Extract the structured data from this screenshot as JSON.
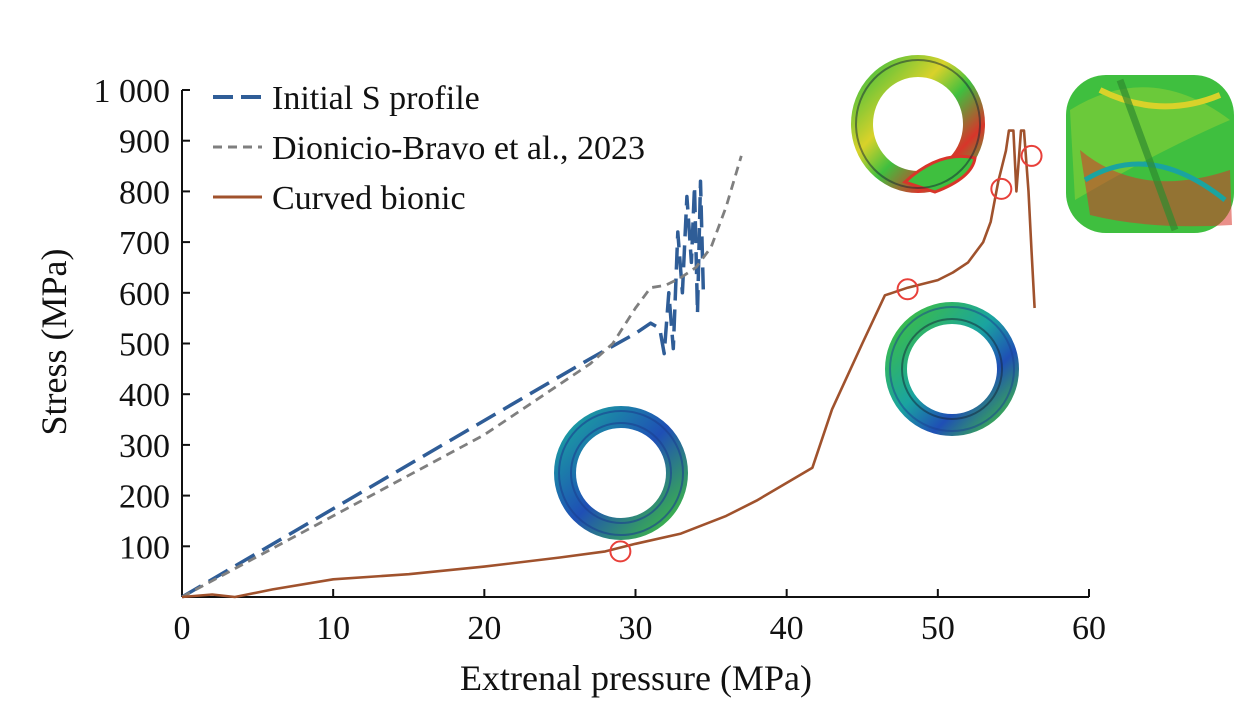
{
  "chart_data": {
    "type": "line",
    "title": "",
    "xlabel": "Extrenal pressure (MPa)",
    "ylabel": "Stress (MPa)",
    "xlim": [
      0,
      60
    ],
    "ylim": [
      0,
      1000
    ],
    "xticks": [
      0,
      10,
      20,
      30,
      40,
      50,
      60
    ],
    "xtick_labels": [
      "0",
      "10",
      "20",
      "30",
      "40",
      "50",
      "60"
    ],
    "yticks": [
      100,
      200,
      300,
      400,
      500,
      600,
      700,
      800,
      900,
      1000
    ],
    "ytick_labels": [
      "100",
      "200",
      "300",
      "400",
      "500",
      "600",
      "700",
      "800",
      "900",
      "1 000"
    ],
    "grid": false,
    "legend_position": "top-left",
    "series": [
      {
        "name": "Initial S profile",
        "style": "long-dash",
        "color": "#2f5d97",
        "x": [
          0,
          27,
          30,
          31,
          31.6,
          31.9,
          32.2,
          32.5,
          32.8,
          33.1,
          33.4,
          33.7,
          33.9,
          34.1,
          34.3,
          34.5
        ],
        "y": [
          0,
          470,
          520,
          540,
          530,
          480,
          600,
          490,
          720,
          600,
          790,
          660,
          810,
          560,
          820,
          590
        ]
      },
      {
        "name": "Dionicio-Bravo et al., 2023",
        "style": "short-dash",
        "color": "#7f7f7f",
        "x": [
          0,
          10,
          20,
          27,
          28.5,
          30,
          31,
          32,
          33,
          34,
          35,
          36,
          37
        ],
        "y": [
          0,
          160,
          320,
          460,
          500,
          570,
          610,
          615,
          630,
          650,
          690,
          770,
          870
        ]
      },
      {
        "name": "Curved bionic",
        "style": "solid",
        "color": "#a0522d",
        "x": [
          0,
          2,
          3.5,
          6,
          10,
          15,
          20,
          25,
          28,
          30,
          33,
          36,
          38,
          40,
          41.7,
          43,
          45,
          46.5,
          47,
          48,
          50,
          51,
          52,
          53,
          53.5,
          54,
          54.5,
          54.7,
          55,
          55.2,
          55.5,
          55.7,
          56,
          56.2,
          56.4
        ],
        "y": [
          0,
          5,
          0,
          15,
          35,
          45,
          60,
          78,
          90,
          105,
          125,
          160,
          190,
          225,
          255,
          370,
          500,
          595,
          600,
          610,
          625,
          640,
          660,
          700,
          740,
          820,
          880,
          920,
          920,
          800,
          920,
          920,
          800,
          680,
          570
        ]
      }
    ],
    "markers": [
      {
        "x": 29,
        "y": 90
      },
      {
        "x": 48,
        "y": 607
      },
      {
        "x": 54.2,
        "y": 805
      },
      {
        "x": 56.2,
        "y": 870
      }
    ],
    "insets": [
      "ring-stress-29",
      "ring-stress-48",
      "ring-buckling-54",
      "ring-collapse-56"
    ]
  },
  "colors": {
    "marker": "#e8403a",
    "axis": "#111111",
    "fem_blue": "#1f4fb5",
    "fem_teal": "#1aa4a0",
    "fem_green": "#3fbf3f",
    "fem_yellow": "#d9d22a",
    "fem_red": "#d8352a"
  }
}
